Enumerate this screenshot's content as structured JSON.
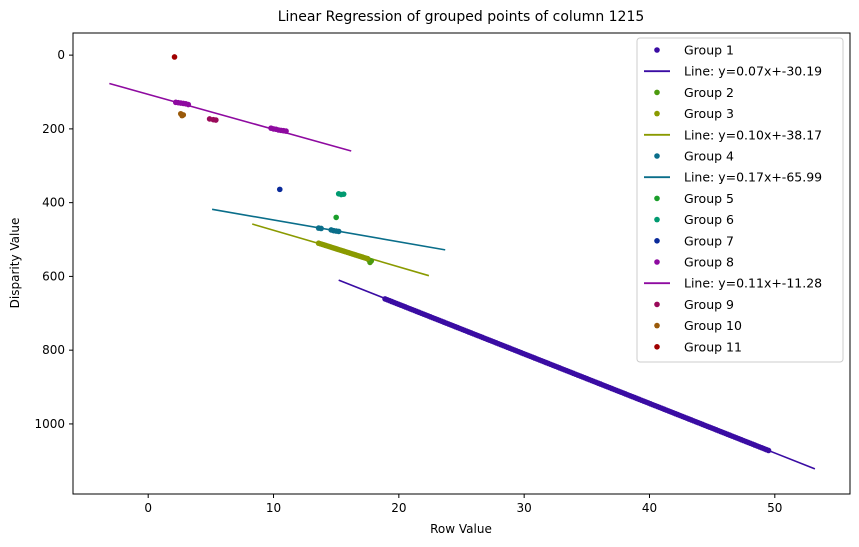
{
  "chart_data": {
    "type": "scatter",
    "title": "Linear Regression of grouped points of column 1215",
    "xlabel": "Row Value",
    "ylabel": "Disparity Value",
    "xlim": [
      -6,
      56
    ],
    "ylim": [
      1190,
      -60
    ],
    "y_inverted": true,
    "xticks": [
      0,
      10,
      20,
      30,
      40,
      50
    ],
    "yticks": [
      0,
      200,
      400,
      600,
      800,
      1000
    ],
    "legend_position": "upper right",
    "legend": [
      {
        "label": "Group 1",
        "kind": "point",
        "color": "#3a0ca3"
      },
      {
        "label": "Line: y=0.07x+-30.19",
        "kind": "line",
        "color": "#3a0ca3"
      },
      {
        "label": "Group 2",
        "kind": "point",
        "color": "#4c9a0e"
      },
      {
        "label": "Group 3",
        "kind": "point",
        "color": "#8a9a00"
      },
      {
        "label": "Line: y=0.10x+-38.17",
        "kind": "line",
        "color": "#8a9a00"
      },
      {
        "label": "Group 4",
        "kind": "point",
        "color": "#0a6e8a"
      },
      {
        "label": "Line: y=0.17x+-65.99",
        "kind": "line",
        "color": "#0a6e8a"
      },
      {
        "label": "Group 5",
        "kind": "point",
        "color": "#1a9e2a"
      },
      {
        "label": "Group 6",
        "kind": "point",
        "color": "#009a70"
      },
      {
        "label": "Group 7",
        "kind": "point",
        "color": "#0a2a9a"
      },
      {
        "label": "Group 8",
        "kind": "point",
        "color": "#8e0aa0"
      },
      {
        "label": "Line: y=0.11x+-11.28",
        "kind": "line",
        "color": "#8e0aa0"
      },
      {
        "label": "Group 9",
        "kind": "point",
        "color": "#9a0a5a"
      },
      {
        "label": "Group 10",
        "kind": "point",
        "color": "#9a5a0a"
      },
      {
        "label": "Group 11",
        "kind": "point",
        "color": "#a00000"
      }
    ],
    "lines": [
      {
        "name": "Line: y=0.07x+-30.19",
        "color": "#3a0ca3",
        "x": [
          15.2,
          53.2
        ],
        "y": [
          610,
          1122
        ]
      },
      {
        "name": "Line: y=0.10x+-38.17",
        "color": "#8a9a00",
        "x": [
          8.3,
          22.4
        ],
        "y": [
          458,
          598
        ]
      },
      {
        "name": "Line: y=0.17x+-65.99",
        "color": "#0a6e8a",
        "x": [
          5.1,
          23.7
        ],
        "y": [
          418,
          528
        ]
      },
      {
        "name": "Line: y=0.11x+-11.28",
        "color": "#8e0aa0",
        "x": [
          -3.1,
          16.2
        ],
        "y": [
          77,
          260
        ]
      }
    ],
    "series": [
      {
        "name": "Group 1",
        "color": "#3a0ca3",
        "segment": {
          "x": [
            18.9,
            49.5
          ],
          "y": [
            661,
            1072
          ],
          "count": 170
        }
      },
      {
        "name": "Group 2",
        "color": "#4c9a0e",
        "x": [
          17.6,
          17.7,
          17.5,
          17.8
        ],
        "y": [
          555,
          562,
          552,
          558
        ]
      },
      {
        "name": "Group 3",
        "color": "#8a9a00",
        "segment": {
          "x": [
            13.6,
            17.5
          ],
          "y": [
            510,
            552
          ],
          "count": 30
        }
      },
      {
        "name": "Group 4",
        "color": "#0a6e8a",
        "x": [
          13.6,
          13.8,
          14.6,
          14.8,
          15.0,
          15.2
        ],
        "y": [
          469,
          470,
          474,
          476,
          477,
          478
        ]
      },
      {
        "name": "Group 5",
        "color": "#1a9e2a",
        "x": [
          15.0
        ],
        "y": [
          440
        ]
      },
      {
        "name": "Group 6",
        "color": "#009a70",
        "x": [
          15.2,
          15.4,
          15.6
        ],
        "y": [
          376,
          378,
          377
        ]
      },
      {
        "name": "Group 7",
        "color": "#0a2a9a",
        "x": [
          10.5
        ],
        "y": [
          364
        ]
      },
      {
        "name": "Group 8",
        "color": "#8e0aa0",
        "x": [
          2.2,
          2.4,
          2.6,
          2.8,
          3.0,
          3.2,
          9.8,
          10.0,
          10.2,
          10.4,
          10.6,
          10.8,
          11.0
        ],
        "y": [
          128,
          129,
          130,
          131,
          132,
          134,
          198,
          200,
          201,
          203,
          204,
          205,
          206
        ]
      },
      {
        "name": "Group 9",
        "color": "#9a0a5a",
        "x": [
          4.9,
          5.2,
          5.4
        ],
        "y": [
          173,
          175,
          176
        ]
      },
      {
        "name": "Group 10",
        "color": "#9a5a0a",
        "x": [
          2.6,
          2.8,
          2.7
        ],
        "y": [
          159,
          162,
          164
        ]
      },
      {
        "name": "Group 11",
        "color": "#a00000",
        "x": [
          2.1
        ],
        "y": [
          5
        ]
      }
    ]
  }
}
